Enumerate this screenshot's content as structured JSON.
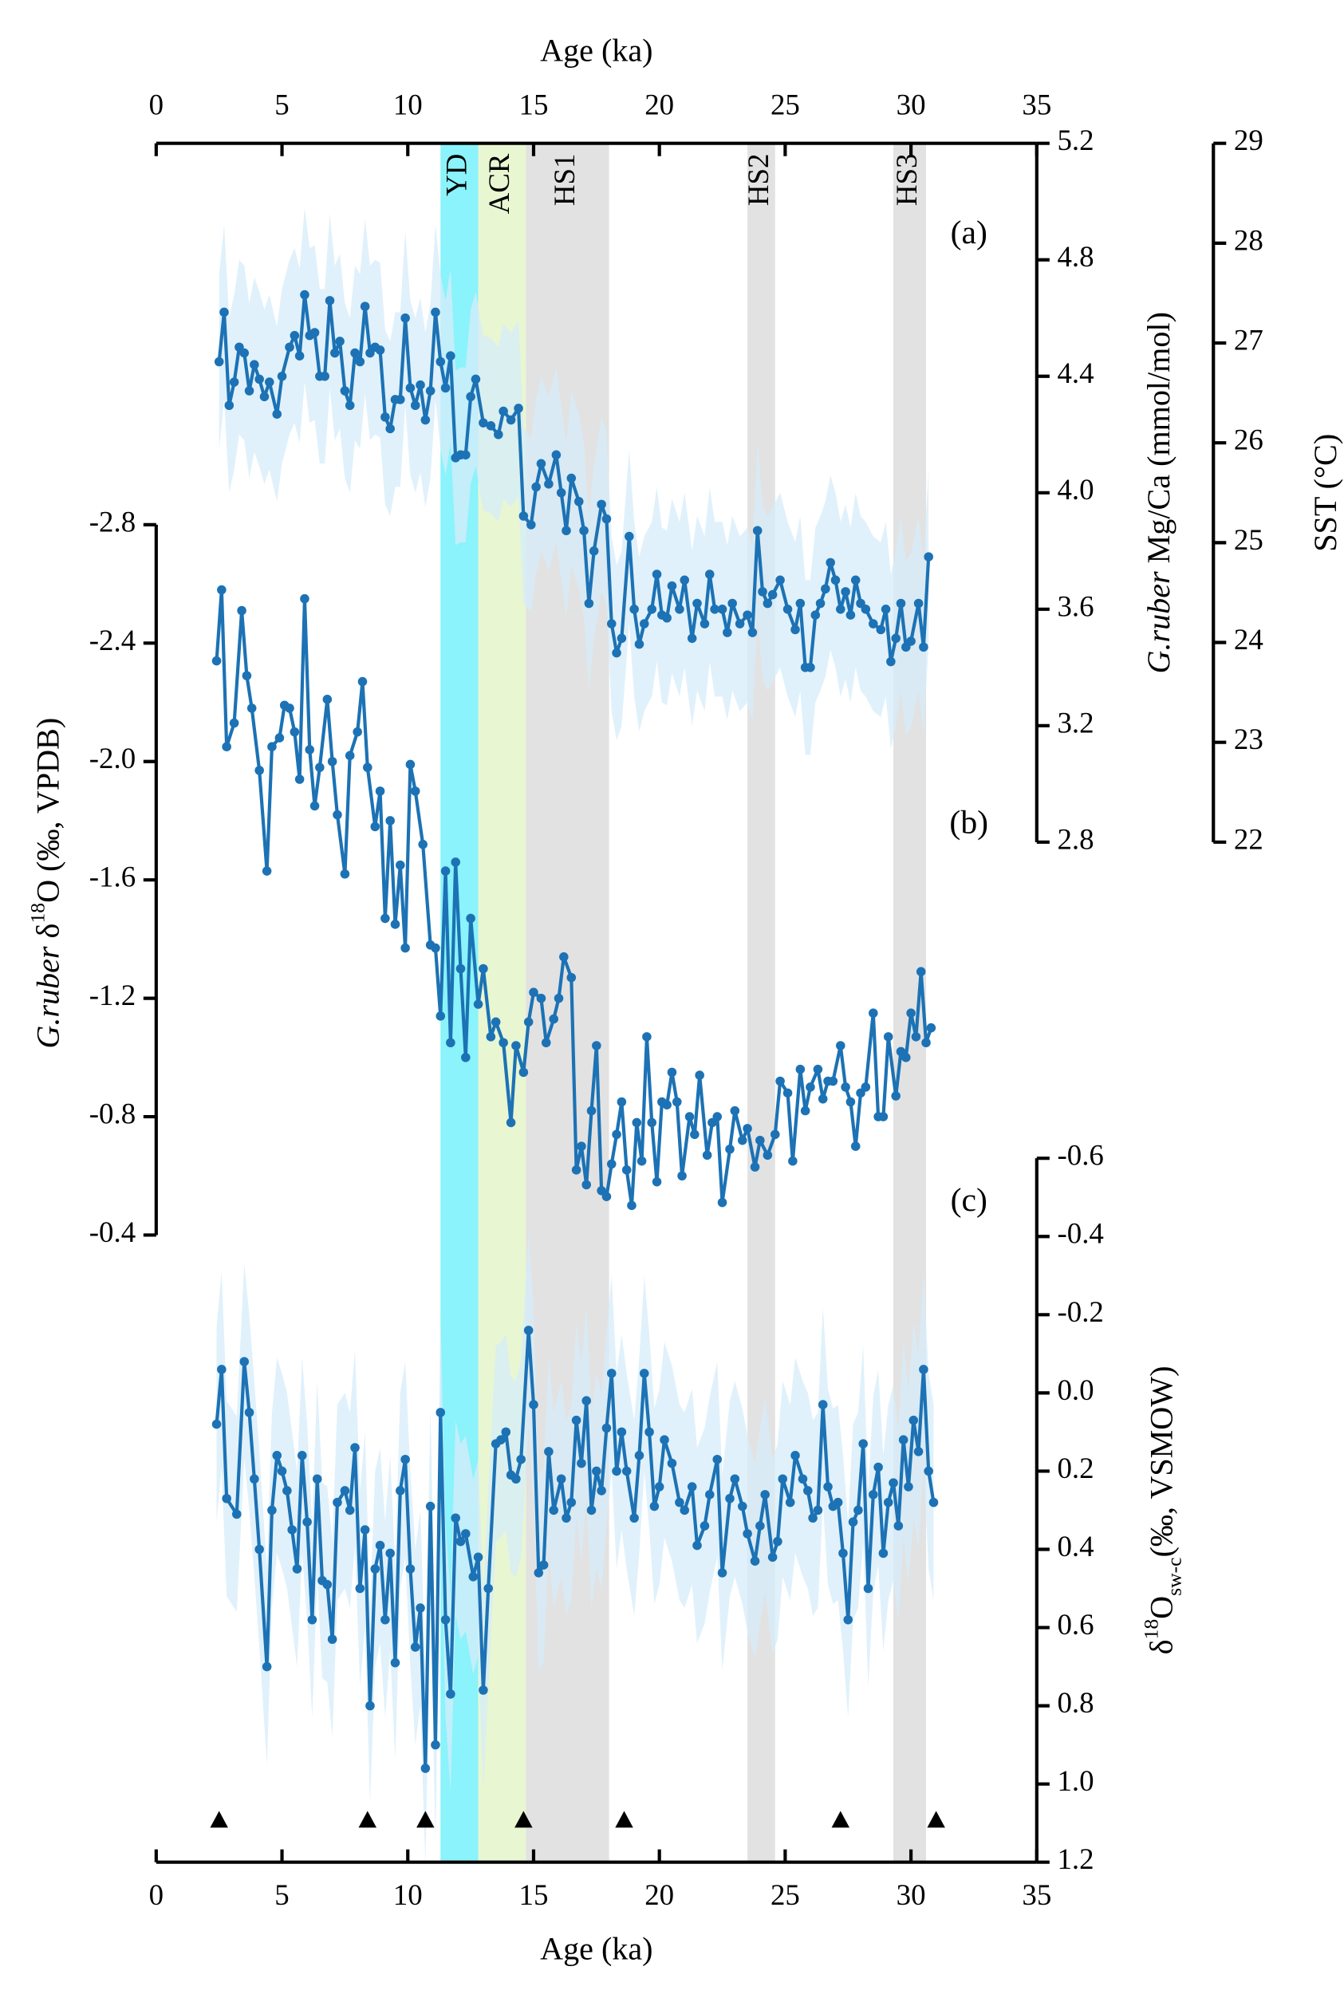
{
  "chart_data": [
    {
      "type": "line",
      "label": "(a)",
      "xlabel": "Age (ka)",
      "xlim": [
        0,
        35
      ],
      "xticks": [
        0,
        5,
        10,
        15,
        20,
        25,
        30,
        35
      ],
      "ylabel": [
        {
          "text": "G.ruber",
          "style": "italic"
        },
        {
          "text": " Mg/Ca (mmol/mol)",
          "style": "normal"
        }
      ],
      "ylim": [
        2.8,
        5.2
      ],
      "yticks": [
        2.8,
        3.2,
        3.6,
        {
          "value": 4.0,
          "label": "4.0"
        },
        4.4,
        4.8,
        5.2
      ],
      "y2label": "SST (°C)",
      "y2lim": [
        22,
        29
      ],
      "y2ticks": [
        22,
        23,
        24,
        25,
        26,
        27,
        28,
        29
      ],
      "events": [
        {
          "name": "YD",
          "range": [
            11.3,
            12.8
          ],
          "color": "#8af3fb"
        },
        {
          "name": "ACR",
          "range": [
            12.8,
            14.7
          ],
          "color": "#e8f6d2"
        },
        {
          "name": "HS1",
          "range": [
            14.7,
            18.0
          ],
          "color": "#e2e2e2"
        },
        {
          "name": "HS2",
          "range": [
            23.5,
            24.6
          ],
          "color": "#e2e2e2"
        },
        {
          "name": "HS3",
          "range": [
            29.3,
            30.6
          ],
          "color": "#e2e2e2"
        }
      ],
      "series": [
        {
          "color": "#1c72b4",
          "band_color": "#d6ecfa",
          "error": 0.3,
          "x": [
            2.5,
            2.7,
            2.9,
            3.1,
            3.3,
            3.5,
            3.7,
            3.9,
            4.1,
            4.3,
            4.5,
            4.8,
            5.0,
            5.3,
            5.5,
            5.7,
            5.9,
            6.1,
            6.3,
            6.5,
            6.7,
            6.9,
            7.1,
            7.3,
            7.5,
            7.7,
            7.9,
            8.1,
            8.3,
            8.5,
            8.7,
            8.9,
            9.1,
            9.3,
            9.5,
            9.7,
            9.9,
            10.1,
            10.3,
            10.5,
            10.7,
            10.9,
            11.1,
            11.3,
            11.5,
            11.7,
            11.9,
            12.1,
            12.3,
            12.5,
            12.7,
            13.0,
            13.3,
            13.6,
            13.8,
            14.1,
            14.4,
            14.6,
            14.9,
            15.1,
            15.3,
            15.6,
            15.9,
            16.1,
            16.3,
            16.5,
            16.8,
            17.0,
            17.2,
            17.4,
            17.7,
            17.9,
            18.1,
            18.3,
            18.5,
            18.8,
            19.0,
            19.2,
            19.4,
            19.7,
            19.9,
            20.1,
            20.3,
            20.5,
            20.8,
            21.0,
            21.3,
            21.5,
            21.8,
            22.0,
            22.2,
            22.5,
            22.7,
            22.9,
            23.2,
            23.5,
            23.7,
            23.9,
            24.1,
            24.3,
            24.5,
            24.8,
            25.1,
            25.4,
            25.6,
            25.8,
            26.0,
            26.2,
            26.4,
            26.6,
            26.8,
            27.0,
            27.2,
            27.4,
            27.6,
            27.8,
            28.0,
            28.2,
            28.5,
            28.8,
            29.0,
            29.2,
            29.4,
            29.6,
            29.8,
            30.0,
            30.3,
            30.5,
            30.7
          ],
          "values": [
            4.45,
            4.62,
            4.3,
            4.38,
            4.5,
            4.48,
            4.35,
            4.44,
            4.39,
            4.33,
            4.38,
            4.27,
            4.4,
            4.5,
            4.54,
            4.47,
            4.68,
            4.54,
            4.55,
            4.4,
            4.4,
            4.66,
            4.48,
            4.52,
            4.35,
            4.3,
            4.48,
            4.45,
            4.64,
            4.48,
            4.5,
            4.49,
            4.26,
            4.22,
            4.32,
            4.32,
            4.6,
            4.36,
            4.3,
            4.37,
            4.25,
            4.35,
            4.62,
            4.45,
            4.36,
            4.47,
            4.12,
            4.13,
            4.13,
            4.33,
            4.39,
            4.24,
            4.23,
            4.2,
            4.28,
            4.25,
            4.29,
            3.92,
            3.89,
            4.02,
            4.1,
            4.03,
            4.13,
            4.0,
            3.87,
            4.05,
            3.97,
            3.87,
            3.62,
            3.8,
            3.96,
            3.91,
            3.55,
            3.45,
            3.5,
            3.85,
            3.6,
            3.48,
            3.55,
            3.6,
            3.72,
            3.58,
            3.57,
            3.68,
            3.6,
            3.7,
            3.5,
            3.62,
            3.55,
            3.72,
            3.6,
            3.6,
            3.52,
            3.62,
            3.55,
            3.58,
            3.52,
            3.87,
            3.66,
            3.62,
            3.65,
            3.7,
            3.6,
            3.53,
            3.62,
            3.4,
            3.4,
            3.58,
            3.62,
            3.67,
            3.76,
            3.7,
            3.6,
            3.66,
            3.58,
            3.7,
            3.62,
            3.6,
            3.55,
            3.53,
            3.6,
            3.42,
            3.5,
            3.62,
            3.47,
            3.49,
            3.62,
            3.47,
            3.78
          ]
        }
      ]
    },
    {
      "type": "line",
      "label": "(b)",
      "ylabel": [
        {
          "text": "G.ruber",
          "style": "italic"
        },
        {
          "text": " δ",
          "style": "normal"
        },
        {
          "text": "18",
          "style": "sup"
        },
        {
          "text": "O (‰, VPDB)",
          "style": "normal"
        }
      ],
      "ylim": [
        -0.4,
        -2.8
      ],
      "yticks": [
        -2.8,
        -2.4,
        {
          "value": -2.0,
          "label": "-2.0"
        },
        -1.6,
        -1.2,
        -0.8,
        -0.4
      ],
      "series": [
        {
          "color": "#1c72b4",
          "x": [
            2.4,
            2.6,
            2.8,
            3.1,
            3.4,
            3.6,
            3.8,
            4.1,
            4.4,
            4.6,
            4.9,
            5.1,
            5.3,
            5.5,
            5.7,
            5.9,
            6.1,
            6.3,
            6.5,
            6.8,
            7.0,
            7.2,
            7.5,
            7.7,
            8.0,
            8.2,
            8.4,
            8.7,
            8.9,
            9.1,
            9.3,
            9.5,
            9.7,
            9.9,
            10.1,
            10.3,
            10.6,
            10.9,
            11.1,
            11.3,
            11.5,
            11.7,
            11.9,
            12.1,
            12.3,
            12.5,
            12.8,
            13.0,
            13.3,
            13.5,
            13.8,
            14.1,
            14.3,
            14.6,
            14.8,
            15.0,
            15.3,
            15.5,
            15.8,
            16.0,
            16.2,
            16.5,
            16.7,
            16.9,
            17.1,
            17.3,
            17.5,
            17.7,
            17.9,
            18.1,
            18.3,
            18.5,
            18.7,
            18.9,
            19.1,
            19.3,
            19.5,
            19.7,
            19.9,
            20.1,
            20.3,
            20.5,
            20.7,
            20.9,
            21.2,
            21.4,
            21.6,
            21.9,
            22.1,
            22.3,
            22.5,
            22.8,
            23.0,
            23.3,
            23.5,
            23.8,
            24.0,
            24.3,
            24.6,
            24.8,
            25.1,
            25.3,
            25.6,
            25.8,
            26.0,
            26.3,
            26.5,
            26.7,
            26.9,
            27.2,
            27.4,
            27.6,
            27.8,
            28.0,
            28.2,
            28.5,
            28.7,
            28.9,
            29.1,
            29.4,
            29.6,
            29.8,
            30.0,
            30.2,
            30.4,
            30.6,
            30.8
          ],
          "values": [
            -2.34,
            -2.58,
            -2.05,
            -2.13,
            -2.51,
            -2.29,
            -2.18,
            -1.97,
            -1.63,
            -2.05,
            -2.08,
            -2.19,
            -2.18,
            -2.1,
            -1.94,
            -2.55,
            -2.04,
            -1.85,
            -1.98,
            -2.21,
            -2.0,
            -1.82,
            -1.62,
            -2.02,
            -2.1,
            -2.27,
            -1.98,
            -1.78,
            -1.9,
            -1.47,
            -1.8,
            -1.45,
            -1.65,
            -1.37,
            -1.99,
            -1.9,
            -1.72,
            -1.38,
            -1.37,
            -1.14,
            -1.63,
            -1.05,
            -1.66,
            -1.3,
            -1.0,
            -1.47,
            -1.18,
            -1.3,
            -1.07,
            -1.12,
            -1.05,
            -0.78,
            -1.04,
            -0.95,
            -1.12,
            -1.22,
            -1.2,
            -1.05,
            -1.13,
            -1.2,
            -1.34,
            -1.27,
            -0.62,
            -0.7,
            -0.57,
            -0.82,
            -1.04,
            -0.55,
            -0.53,
            -0.64,
            -0.74,
            -0.85,
            -0.62,
            -0.5,
            -0.78,
            -0.65,
            -1.07,
            -0.78,
            -0.58,
            -0.85,
            -0.84,
            -0.95,
            -0.85,
            -0.6,
            -0.8,
            -0.74,
            -0.94,
            -0.67,
            -0.78,
            -0.8,
            -0.51,
            -0.69,
            -0.82,
            -0.72,
            -0.76,
            -0.63,
            -0.72,
            -0.67,
            -0.74,
            -0.92,
            -0.88,
            -0.65,
            -0.96,
            -0.82,
            -0.9,
            -0.96,
            -0.86,
            -0.92,
            -0.92,
            -1.04,
            -0.9,
            -0.85,
            -0.7,
            -0.88,
            -0.9,
            -1.15,
            -0.8,
            -0.8,
            -1.07,
            -0.87,
            -1.02,
            -1.0,
            -1.15,
            -1.07,
            -1.29,
            -1.05,
            -1.1
          ]
        }
      ]
    },
    {
      "type": "line",
      "label": "(c)",
      "xlabel": "Age (ka)",
      "xlim": [
        0,
        35
      ],
      "xticks": [
        0,
        5,
        10,
        15,
        20,
        25,
        30,
        35
      ],
      "ylabel": [
        {
          "text": "δ",
          "style": "normal"
        },
        {
          "text": "18",
          "style": "sup"
        },
        {
          "text": "O",
          "style": "normal"
        },
        {
          "text": "sw-c",
          "style": "sub"
        },
        {
          "text": "(‰, VSMOW)",
          "style": "normal"
        }
      ],
      "ylim": [
        1.2,
        -0.6
      ],
      "yticks": [
        -0.6,
        -0.4,
        -0.2,
        {
          "value": 0.0,
          "label": "0.0"
        },
        0.2,
        0.4,
        0.6,
        0.8,
        {
          "value": 1.0,
          "label": "1.0"
        },
        1.2
      ],
      "age_controls": [
        2.5,
        8.4,
        10.7,
        14.6,
        18.6,
        27.2,
        31.0
      ],
      "series": [
        {
          "color": "#1c72b4",
          "band_color": "#d6ecfa",
          "error": 0.25,
          "x": [
            2.4,
            2.6,
            2.8,
            3.2,
            3.5,
            3.7,
            3.9,
            4.1,
            4.4,
            4.6,
            4.8,
            5.0,
            5.2,
            5.4,
            5.6,
            5.8,
            6.0,
            6.2,
            6.4,
            6.6,
            6.8,
            7.0,
            7.2,
            7.5,
            7.7,
            7.9,
            8.1,
            8.3,
            8.5,
            8.7,
            8.9,
            9.1,
            9.3,
            9.5,
            9.7,
            9.9,
            10.1,
            10.3,
            10.5,
            10.7,
            10.9,
            11.1,
            11.3,
            11.5,
            11.7,
            11.9,
            12.1,
            12.3,
            12.6,
            12.8,
            13.0,
            13.2,
            13.5,
            13.7,
            13.9,
            14.1,
            14.3,
            14.5,
            14.8,
            15.0,
            15.2,
            15.4,
            15.6,
            15.8,
            16.1,
            16.3,
            16.5,
            16.7,
            16.9,
            17.1,
            17.3,
            17.5,
            17.7,
            17.9,
            18.1,
            18.3,
            18.5,
            18.7,
            19.0,
            19.2,
            19.4,
            19.6,
            19.8,
            20.0,
            20.2,
            20.5,
            20.8,
            21.0,
            21.3,
            21.5,
            21.8,
            22.0,
            22.3,
            22.5,
            22.8,
            23.0,
            23.3,
            23.5,
            23.8,
            24.0,
            24.2,
            24.5,
            24.7,
            24.9,
            25.2,
            25.4,
            25.7,
            25.9,
            26.1,
            26.3,
            26.5,
            26.7,
            26.9,
            27.1,
            27.3,
            27.5,
            27.7,
            27.9,
            28.1,
            28.3,
            28.5,
            28.7,
            28.9,
            29.1,
            29.3,
            29.5,
            29.7,
            29.9,
            30.1,
            30.3,
            30.5,
            30.7,
            30.9
          ],
          "values": [
            0.08,
            -0.06,
            0.27,
            0.31,
            -0.08,
            0.05,
            0.22,
            0.4,
            0.7,
            0.3,
            0.16,
            0.2,
            0.25,
            0.35,
            0.45,
            0.16,
            0.33,
            0.58,
            0.22,
            0.48,
            0.49,
            0.63,
            0.28,
            0.25,
            0.3,
            0.14,
            0.5,
            0.35,
            0.8,
            0.45,
            0.39,
            0.58,
            0.41,
            0.69,
            0.25,
            0.17,
            0.45,
            0.65,
            0.55,
            0.96,
            0.29,
            0.9,
            0.05,
            0.58,
            0.77,
            0.32,
            0.38,
            0.36,
            0.47,
            0.42,
            0.76,
            0.5,
            0.13,
            0.12,
            0.1,
            0.21,
            0.22,
            0.17,
            -0.16,
            0.03,
            0.46,
            0.44,
            0.15,
            0.3,
            0.22,
            0.32,
            0.28,
            0.07,
            0.18,
            0.02,
            0.3,
            0.2,
            0.25,
            0.09,
            -0.05,
            0.2,
            0.1,
            0.2,
            0.32,
            0.16,
            -0.05,
            0.1,
            0.29,
            0.24,
            0.12,
            0.18,
            0.28,
            0.3,
            0.24,
            0.39,
            0.34,
            0.26,
            0.17,
            0.46,
            0.27,
            0.22,
            0.29,
            0.36,
            0.43,
            0.34,
            0.26,
            0.42,
            0.38,
            0.22,
            0.28,
            0.16,
            0.22,
            0.25,
            0.32,
            0.3,
            0.03,
            0.24,
            0.29,
            0.28,
            0.41,
            0.58,
            0.33,
            0.3,
            0.13,
            0.5,
            0.26,
            0.19,
            0.41,
            0.28,
            0.23,
            0.34,
            0.12,
            0.24,
            0.07,
            0.15,
            -0.06,
            0.2,
            0.28
          ]
        }
      ]
    }
  ]
}
